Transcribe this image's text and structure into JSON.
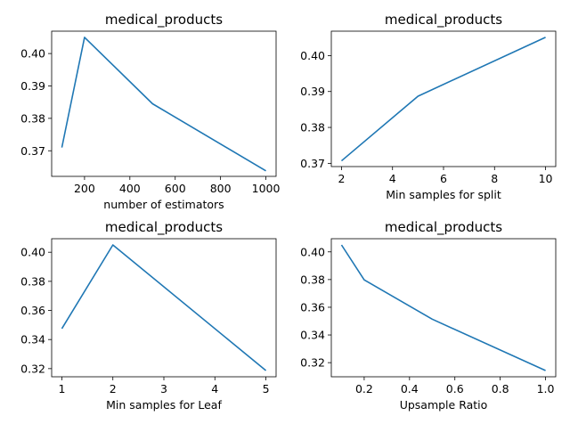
{
  "chart_data": [
    {
      "type": "line",
      "title": "medical_products",
      "xlabel": "number of estimators",
      "ylabel": "",
      "x": [
        100,
        200,
        500,
        1000
      ],
      "y": [
        0.371,
        0.405,
        0.3845,
        0.3638
      ],
      "xlim": [
        55,
        1045
      ],
      "ylim": [
        0.3621,
        0.4069
      ],
      "xticks": [
        200,
        400,
        600,
        800,
        1000
      ],
      "xticklabels": [
        "200",
        "400",
        "600",
        "800",
        "1000"
      ],
      "yticks": [
        0.37,
        0.38,
        0.39,
        0.4
      ],
      "yticklabels": [
        "0.37",
        "0.38",
        "0.39",
        "0.40"
      ],
      "color": "#1f77b4",
      "grid": false
    },
    {
      "type": "line",
      "title": "medical_products",
      "xlabel": "Min samples for split",
      "ylabel": "",
      "x": [
        2,
        5,
        10
      ],
      "y": [
        0.3707,
        0.3887,
        0.4051
      ],
      "xlim": [
        1.6,
        10.4
      ],
      "ylim": [
        0.3691,
        0.4068
      ],
      "xticks": [
        2,
        4,
        6,
        8,
        10
      ],
      "xticklabels": [
        "2",
        "4",
        "6",
        "8",
        "10"
      ],
      "yticks": [
        0.37,
        0.38,
        0.39,
        0.4
      ],
      "yticklabels": [
        "0.37",
        "0.38",
        "0.39",
        "0.40"
      ],
      "color": "#1f77b4",
      "grid": false
    },
    {
      "type": "line",
      "title": "medical_products",
      "xlabel": "Min samples for Leaf",
      "ylabel": "",
      "x": [
        1,
        2,
        5
      ],
      "y": [
        0.3475,
        0.405,
        0.3187
      ],
      "xlim": [
        0.8,
        5.2
      ],
      "ylim": [
        0.3144,
        0.4093
      ],
      "xticks": [
        1,
        2,
        3,
        4,
        5
      ],
      "xticklabels": [
        "1",
        "2",
        "3",
        "4",
        "5"
      ],
      "yticks": [
        0.32,
        0.34,
        0.36,
        0.38,
        0.4
      ],
      "yticklabels": [
        "0.32",
        "0.34",
        "0.36",
        "0.38",
        "0.40"
      ],
      "color": "#1f77b4",
      "grid": false
    },
    {
      "type": "line",
      "title": "medical_products",
      "xlabel": "Upsample Ratio",
      "ylabel": "",
      "x": [
        0.1,
        0.2,
        0.5,
        1.0
      ],
      "y": [
        0.405,
        0.3798,
        0.3514,
        0.3143
      ],
      "xlim": [
        0.055,
        1.045
      ],
      "ylim": [
        0.3098,
        0.4095
      ],
      "xticks": [
        0.2,
        0.4,
        0.6,
        0.8,
        1.0
      ],
      "xticklabels": [
        "0.2",
        "0.4",
        "0.6",
        "0.8",
        "1.0"
      ],
      "yticks": [
        0.32,
        0.34,
        0.36,
        0.38,
        0.4
      ],
      "yticklabels": [
        "0.32",
        "0.34",
        "0.36",
        "0.38",
        "0.40"
      ],
      "color": "#1f77b4",
      "grid": false
    }
  ]
}
